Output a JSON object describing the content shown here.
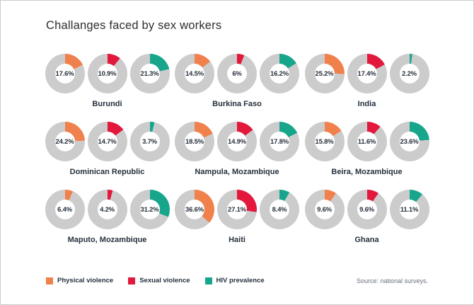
{
  "title": "Challanges faced by sex workers",
  "source": "Source: national surveys.",
  "chart_data": {
    "type": "pie",
    "variant": "donut small-multiples: 3x3 grid of locations, 3 single-value donuts each, wedge starts at 12 o'clock clockwise",
    "title": "Challanges faced by sex workers",
    "ring_background": "#CCCCCC",
    "hole_color": "#FFFFFF",
    "legend_position": "bottom-left",
    "series_names": [
      "Physical violence",
      "Sexual violence",
      "HIV prevalence"
    ],
    "series_colors": [
      "#F0814C",
      "#E2183D",
      "#17A68C"
    ],
    "value_range": [
      0,
      100
    ],
    "groups": [
      {
        "name": "Burundi",
        "values": [
          17.6,
          10.9,
          21.3
        ],
        "labels": [
          "17.6%",
          "10.9%",
          "21.3%"
        ]
      },
      {
        "name": "Burkina Faso",
        "values": [
          14.5,
          6.0,
          16.2
        ],
        "labels": [
          "14.5%",
          "6%",
          "16.2%"
        ]
      },
      {
        "name": "India",
        "values": [
          25.2,
          17.4,
          2.2
        ],
        "labels": [
          "25.2%",
          "17.4%",
          "2.2%"
        ]
      },
      {
        "name": "Dominican Republic",
        "values": [
          24.2,
          14.7,
          3.7
        ],
        "labels": [
          "24.2%",
          "14.7%",
          "3.7%"
        ]
      },
      {
        "name": "Nampula, Mozambique",
        "values": [
          18.5,
          14.9,
          17.8
        ],
        "labels": [
          "18.5%",
          "14.9%",
          "17.8%"
        ]
      },
      {
        "name": "Beira, Mozambique",
        "values": [
          15.8,
          11.6,
          23.6
        ],
        "labels": [
          "15.8%",
          "11.6%",
          "23.6%"
        ]
      },
      {
        "name": "Maputo, Mozambique",
        "values": [
          6.4,
          4.2,
          31.2
        ],
        "labels": [
          "6.4%",
          "4.2%",
          "31.2%"
        ]
      },
      {
        "name": "Haiti",
        "values": [
          36.6,
          27.1,
          8.4
        ],
        "labels": [
          "36.6%",
          "27.1%",
          "8.4%"
        ]
      },
      {
        "name": "Ghana",
        "values": [
          9.6,
          9.6,
          11.1
        ],
        "labels": [
          "9.6%",
          "9.6%",
          "11.1%"
        ]
      }
    ],
    "grid_rows": 3,
    "grid_cols": 3
  }
}
